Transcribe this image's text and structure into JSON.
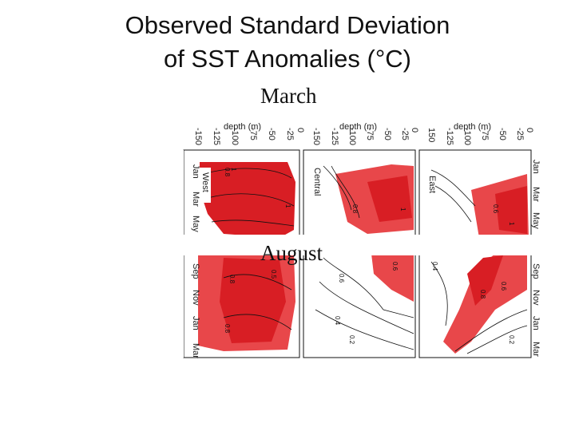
{
  "slide": {
    "title_line1": "Observed Standard Deviation",
    "title_line2": "of SST Anomalies (°C)",
    "label_march": "March",
    "label_august": "August"
  },
  "panels": [
    {
      "region": "West",
      "axis_label": "depth (m)",
      "ticks": [
        "-150",
        "-125",
        "-100",
        "-75",
        "-50",
        "-25",
        "0"
      ]
    },
    {
      "region": "Central",
      "axis_label": "depth (m)",
      "ticks": [
        "-150",
        "-125",
        "-100",
        "-75",
        "-50",
        "-25",
        "0"
      ]
    },
    {
      "region": "East",
      "axis_label": "depth (m)",
      "ticks": [
        "150",
        "-125",
        "-100",
        "-75",
        "-50",
        "-25",
        "0"
      ]
    }
  ],
  "months": [
    "Jan",
    "Mar",
    "May",
    "Sep",
    "Nov",
    "Jan",
    "Mar"
  ],
  "contour_labels": [
    "0.8",
    "1",
    "0.6",
    "0.4",
    "0.2",
    "0.5",
    "0.8",
    "0.6",
    "0.4",
    "0.8",
    "1",
    "0.6",
    "0.8"
  ],
  "colors": {
    "red_dark": "#d81e24",
    "red_mid": "#e8474a",
    "red_light": "#f07a7a",
    "line": "#111111"
  }
}
